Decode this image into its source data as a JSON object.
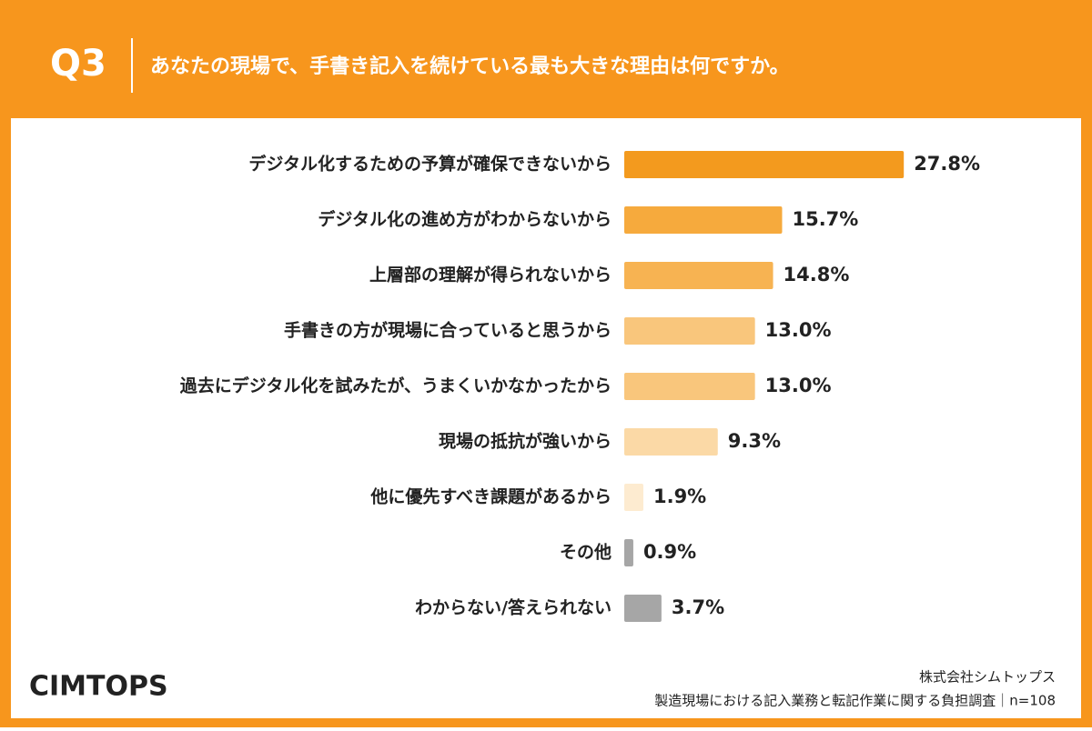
{
  "chart_data": {
    "type": "bar",
    "orientation": "horizontal",
    "question_label": "Q3",
    "title": "あなたの現場で、手書き記入を続けている最も大きな理由は何ですか。",
    "categories": [
      "デジタル化するための予算が確保できないから",
      "デジタル化の進め方がわからないから",
      "上層部の理解が得られないから",
      "手書きの方が現場に合っていると思うから",
      "過去にデジタル化を試みたが、うまくいかなかったから",
      "現場の抵抗が強いから",
      "他に優先すべき課題があるから",
      "その他",
      "わからない/答えられない"
    ],
    "values": [
      27.8,
      15.7,
      14.8,
      13.0,
      13.0,
      9.3,
      1.9,
      0.9,
      3.7
    ],
    "value_labels": [
      "27.8%",
      "15.7%",
      "14.8%",
      "13.0%",
      "13.0%",
      "9.3%",
      "1.9%",
      "0.9%",
      "3.7%"
    ],
    "colors": [
      "#f39a1e",
      "#f6aa3d",
      "#f7b352",
      "#f9c67c",
      "#f9c67c",
      "#fbd9a6",
      "#fdebd0",
      "#a6a6a6",
      "#a6a6a6"
    ]
  },
  "footer": {
    "logo": "CIMTOPS",
    "company": "株式会社シムトップス",
    "source": "製造現場における記入業務と転記作業に関する負担調査｜n=108"
  }
}
